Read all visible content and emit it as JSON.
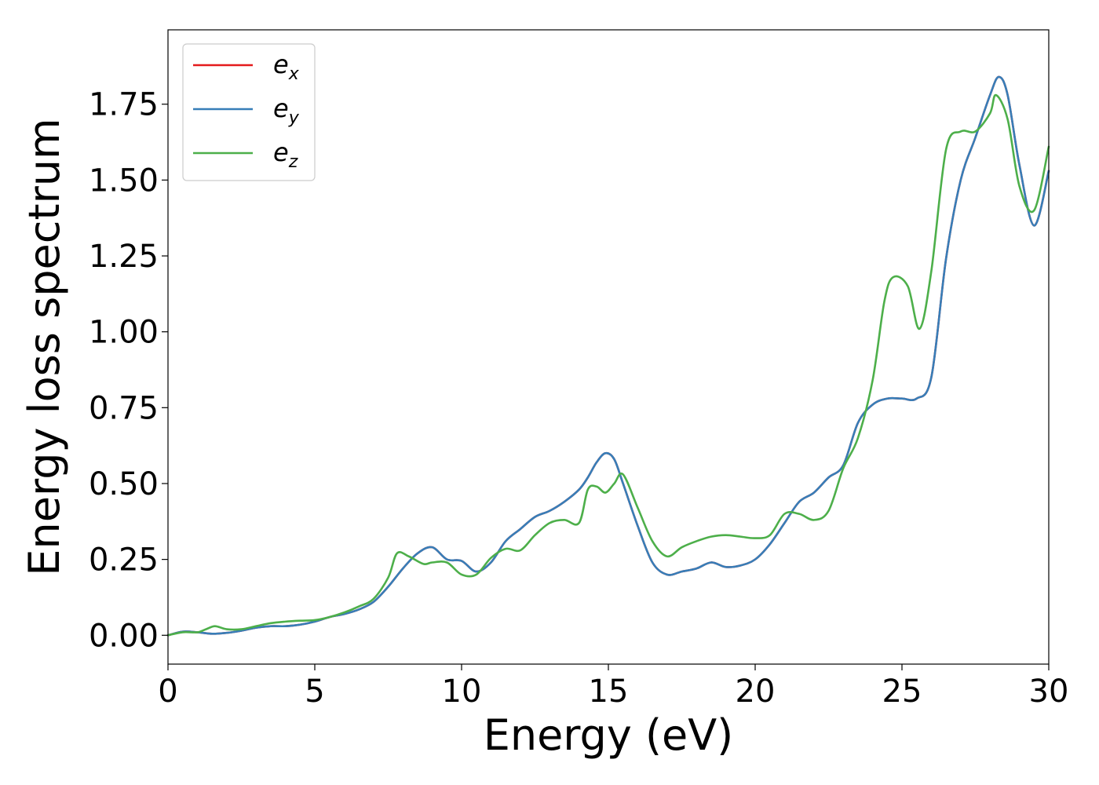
{
  "chart_data": {
    "type": "line",
    "xlabel": "Energy (eV)",
    "ylabel": "Energy loss spectrum",
    "xlim": [
      0,
      30
    ],
    "ylim": [
      -0.095,
      1.995
    ],
    "xticks": [
      "0",
      "5",
      "10",
      "15",
      "20",
      "25",
      "30"
    ],
    "yticks": [
      "0.00",
      "0.25",
      "0.50",
      "0.75",
      "1.00",
      "1.25",
      "1.50",
      "1.75"
    ],
    "grid": false,
    "legend_position": "upper left",
    "series": [
      {
        "name": "e_x",
        "legend_base": "e",
        "legend_sub": "x",
        "color": "#e41a1c",
        "x": [
          0,
          0.5,
          1,
          1.5,
          2,
          2.5,
          3,
          3.5,
          4,
          4.5,
          5,
          5.5,
          6,
          6.5,
          7,
          7.5,
          8,
          8.5,
          9,
          9.5,
          10,
          10.5,
          11,
          11.5,
          12,
          12.5,
          13,
          13.5,
          14,
          14.3,
          14.6,
          14.9,
          15.2,
          15.5,
          16,
          16.5,
          17,
          17.5,
          18,
          18.5,
          19,
          19.5,
          20,
          20.5,
          21,
          21.5,
          22,
          22.5,
          23,
          23.5,
          24,
          24.5,
          25,
          25.5,
          26,
          26.5,
          27,
          27.5,
          28,
          28.3,
          28.6,
          29,
          29.5,
          30
        ],
        "y": [
          0,
          0.012,
          0.01,
          0.005,
          0.008,
          0.015,
          0.025,
          0.03,
          0.03,
          0.035,
          0.045,
          0.06,
          0.07,
          0.085,
          0.11,
          0.16,
          0.22,
          0.27,
          0.29,
          0.25,
          0.245,
          0.21,
          0.24,
          0.31,
          0.35,
          0.39,
          0.41,
          0.44,
          0.48,
          0.52,
          0.57,
          0.6,
          0.58,
          0.5,
          0.36,
          0.24,
          0.2,
          0.21,
          0.22,
          0.24,
          0.225,
          0.23,
          0.25,
          0.3,
          0.37,
          0.44,
          0.47,
          0.52,
          0.56,
          0.7,
          0.76,
          0.78,
          0.78,
          0.78,
          0.85,
          1.24,
          1.5,
          1.64,
          1.78,
          1.84,
          1.78,
          1.55,
          1.35,
          1.53
        ]
      },
      {
        "name": "e_y",
        "legend_base": "e",
        "legend_sub": "y",
        "color": "#377eb8",
        "x": [
          0,
          0.5,
          1,
          1.5,
          2,
          2.5,
          3,
          3.5,
          4,
          4.5,
          5,
          5.5,
          6,
          6.5,
          7,
          7.5,
          8,
          8.5,
          9,
          9.5,
          10,
          10.5,
          11,
          11.5,
          12,
          12.5,
          13,
          13.5,
          14,
          14.3,
          14.6,
          14.9,
          15.2,
          15.5,
          16,
          16.5,
          17,
          17.5,
          18,
          18.5,
          19,
          19.5,
          20,
          20.5,
          21,
          21.5,
          22,
          22.5,
          23,
          23.5,
          24,
          24.5,
          25,
          25.5,
          26,
          26.5,
          27,
          27.5,
          28,
          28.3,
          28.6,
          29,
          29.5,
          30
        ],
        "y": [
          0,
          0.012,
          0.01,
          0.005,
          0.008,
          0.015,
          0.025,
          0.03,
          0.03,
          0.035,
          0.045,
          0.06,
          0.07,
          0.085,
          0.11,
          0.16,
          0.22,
          0.27,
          0.29,
          0.25,
          0.245,
          0.21,
          0.24,
          0.31,
          0.35,
          0.39,
          0.41,
          0.44,
          0.48,
          0.52,
          0.57,
          0.6,
          0.58,
          0.5,
          0.36,
          0.24,
          0.2,
          0.21,
          0.22,
          0.24,
          0.225,
          0.23,
          0.25,
          0.3,
          0.37,
          0.44,
          0.47,
          0.52,
          0.56,
          0.7,
          0.76,
          0.78,
          0.78,
          0.78,
          0.85,
          1.24,
          1.5,
          1.64,
          1.78,
          1.84,
          1.78,
          1.55,
          1.35,
          1.53
        ]
      },
      {
        "name": "e_z",
        "legend_base": "e",
        "legend_sub": "z",
        "color": "#4daf4a",
        "x": [
          0,
          0.5,
          1,
          1.3,
          1.6,
          2,
          2.5,
          3,
          3.5,
          4,
          4.5,
          5,
          5.5,
          6,
          6.5,
          7,
          7.5,
          7.8,
          8.2,
          8.7,
          9,
          9.5,
          10,
          10.5,
          11,
          11.5,
          12,
          12.5,
          13,
          13.5,
          14,
          14.3,
          14.6,
          14.9,
          15.2,
          15.5,
          16,
          16.5,
          17,
          17.5,
          18,
          18.5,
          19,
          19.5,
          20,
          20.5,
          21,
          21.5,
          22,
          22.5,
          23,
          23.5,
          24,
          24.4,
          24.7,
          25.2,
          25.6,
          26,
          26.5,
          27,
          27.5,
          28,
          28.2,
          28.6,
          29,
          29.5,
          30
        ],
        "y": [
          0,
          0.01,
          0.01,
          0.02,
          0.03,
          0.02,
          0.02,
          0.03,
          0.04,
          0.045,
          0.048,
          0.05,
          0.06,
          0.075,
          0.095,
          0.12,
          0.19,
          0.27,
          0.26,
          0.235,
          0.24,
          0.24,
          0.2,
          0.2,
          0.255,
          0.285,
          0.28,
          0.33,
          0.37,
          0.38,
          0.37,
          0.48,
          0.49,
          0.47,
          0.5,
          0.53,
          0.42,
          0.31,
          0.26,
          0.29,
          0.31,
          0.325,
          0.33,
          0.325,
          0.32,
          0.33,
          0.4,
          0.4,
          0.38,
          0.41,
          0.55,
          0.65,
          0.84,
          1.1,
          1.18,
          1.15,
          1.01,
          1.2,
          1.6,
          1.66,
          1.66,
          1.72,
          1.78,
          1.7,
          1.48,
          1.4,
          1.61
        ]
      }
    ]
  }
}
